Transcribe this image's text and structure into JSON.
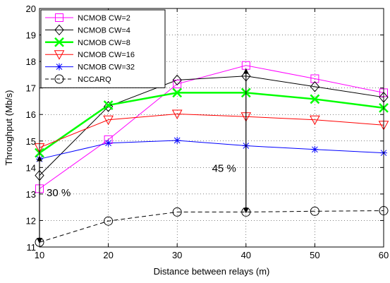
{
  "chart_data": {
    "type": "line",
    "xlabel": "Distance between relays (m)",
    "ylabel": "Throughput (Mb/s)",
    "x": [
      10,
      20,
      30,
      40,
      50,
      60
    ],
    "xlim": [
      10,
      60
    ],
    "ylim": [
      11,
      20
    ],
    "xticks": [
      10,
      20,
      30,
      40,
      50,
      60
    ],
    "yticks": [
      11,
      12,
      13,
      14,
      15,
      16,
      17,
      18,
      19,
      20
    ],
    "grid": true,
    "legend_position": "top-left",
    "series": [
      {
        "name": "NCMOB CW=2",
        "values": [
          13.2,
          15.05,
          17.15,
          17.85,
          17.35,
          16.82
        ],
        "color": "#ff00ff",
        "marker": "square",
        "linestyle": "solid",
        "linewidth": 1
      },
      {
        "name": "NCMOB CW=4",
        "values": [
          13.7,
          16.3,
          17.3,
          17.45,
          17.05,
          16.65
        ],
        "color": "#000000",
        "marker": "diamond",
        "linestyle": "solid",
        "linewidth": 1
      },
      {
        "name": "NCMOB CW=8",
        "values": [
          14.55,
          16.35,
          16.82,
          16.82,
          16.58,
          16.25
        ],
        "color": "#00ff00",
        "marker": "x",
        "linestyle": "solid",
        "linewidth": 2.5
      },
      {
        "name": "NCMOB CW=16",
        "values": [
          14.75,
          15.8,
          16.02,
          15.92,
          15.8,
          15.6
        ],
        "color": "#ff0000",
        "marker": "triangle-down",
        "linestyle": "solid",
        "linewidth": 1
      },
      {
        "name": "NCMOB CW=32",
        "values": [
          14.32,
          14.92,
          15.02,
          14.82,
          14.68,
          14.55
        ],
        "color": "#0000ff",
        "marker": "star",
        "linestyle": "solid",
        "linewidth": 1
      },
      {
        "name": "NCCARQ",
        "values": [
          11.18,
          11.98,
          12.32,
          12.32,
          12.35,
          12.37
        ],
        "color": "#000000",
        "marker": "circle",
        "linestyle": "dashed",
        "linewidth": 1
      }
    ],
    "annotations": [
      {
        "text": "30 %",
        "x": 10,
        "y_from": 11.18,
        "y_to": 14.55
      },
      {
        "text": "45 %",
        "x": 40,
        "y_from": 12.32,
        "y_to": 17.85
      }
    ]
  }
}
